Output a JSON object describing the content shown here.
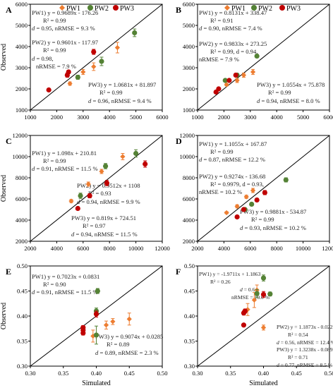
{
  "legend": {
    "items": [
      {
        "label": "PW1",
        "color": "#ED7D31",
        "marker": "diamond"
      },
      {
        "label": "PW2",
        "color": "#548235",
        "marker": "circle"
      },
      {
        "label": "PW3",
        "color": "#C00000",
        "marker": "circle"
      }
    ]
  },
  "chart_data": [
    {
      "panel": "A",
      "type": "scatter",
      "xlim": [
        1000,
        6000
      ],
      "ylim": [
        1000,
        6000
      ],
      "xticks": [
        "1000",
        "2000",
        "3000",
        "4000",
        "5000",
        "6000"
      ],
      "yticks": [
        "1000",
        "2000",
        "3000",
        "4000",
        "5000",
        "6000"
      ],
      "xlabel": "",
      "ylabel": "Observed",
      "series": [
        {
          "name": "PW1",
          "points": [
            [
              2500,
              2250
            ],
            [
              3000,
              2800
            ],
            [
              3400,
              3050
            ],
            [
              4300,
              3950
            ]
          ],
          "err": [
            80,
            120,
            180,
            250
          ]
        },
        {
          "name": "PW2",
          "points": [
            [
              2800,
              2550
            ],
            [
              3700,
              3300
            ],
            [
              4950,
              4650
            ]
          ],
          "err": [
            100,
            200,
            180
          ]
        },
        {
          "name": "PW3",
          "points": [
            [
              1700,
              1950
            ],
            [
              2400,
              2650
            ],
            [
              2450,
              2800
            ],
            [
              3400,
              3750
            ]
          ],
          "err": [
            60,
            100,
            80,
            120
          ]
        }
      ],
      "annotations": [
        "PW1) y = 0.9689x - 176.26",
        "R² = 0.99",
        "d = 0.95, nRMSE = 9.3 %",
        "PW2) y = 0.9601x - 117.97",
        "R² = 0.99",
        "d = 0.98,",
        "nRMSE = 7.9 %",
        "PW3) y = 1.0681x + 81.897",
        "R² = 0.99",
        "d = 0.96, nRMSE = 9.4 %"
      ]
    },
    {
      "panel": "B",
      "type": "scatter",
      "xlim": [
        1000,
        6000
      ],
      "ylim": [
        1000,
        6000
      ],
      "xticks": [
        "1000",
        "2000",
        "3000",
        "4000",
        "5000",
        "6000"
      ],
      "yticks": [
        "1000",
        "2000",
        "3000",
        "4000",
        "5000",
        "6000"
      ],
      "xlabel": "",
      "ylabel": "",
      "series": [
        {
          "name": "PW1",
          "points": [
            [
              2100,
              2200
            ],
            [
              2500,
              2400
            ],
            [
              2750,
              2650
            ],
            [
              3100,
              2800
            ]
          ],
          "err": [
            60,
            100,
            100,
            120
          ]
        },
        {
          "name": "PW2",
          "points": [
            [
              2050,
              2400
            ],
            [
              2500,
              2650
            ],
            [
              3250,
              3550
            ]
          ],
          "err": [
            60,
            80,
            80
          ]
        },
        {
          "name": "PW3",
          "points": [
            [
              1700,
              1850
            ],
            [
              1800,
              2000
            ],
            [
              2200,
              2400
            ],
            [
              2450,
              2650
            ]
          ],
          "err": [
            50,
            60,
            60,
            80
          ]
        }
      ],
      "annotations": [
        "PW1) y = 0.8131x + 338.47",
        "R² = 0.91",
        "d = 0.90, nRMSE = 7.4 %",
        "PW2) y = 0.9833x + 273.25",
        "R² = 0.99, d = 0.94,",
        "nRMSE = 7.9 %",
        "PW3) y = 1.0554x + 75.878",
        "R² = 0.99",
        "d = 0.94, nRMSE = 8.0 %"
      ]
    },
    {
      "panel": "C",
      "type": "scatter",
      "xlim": [
        2000,
        12000
      ],
      "ylim": [
        2000,
        12000
      ],
      "xticks": [
        "2000",
        "4000",
        "6000",
        "8000",
        "10000",
        "12000"
      ],
      "yticks": [
        "2000",
        "4000",
        "6000",
        "8000",
        "10000",
        "12000"
      ],
      "xlabel": "",
      "ylabel": "Observed",
      "series": [
        {
          "name": "PW1",
          "points": [
            [
              5100,
              5800
            ],
            [
              6400,
              7400
            ],
            [
              7400,
              8600
            ],
            [
              9000,
              10000
            ]
          ],
          "err": [
            150,
            200,
            200,
            300
          ]
        },
        {
          "name": "PW2",
          "points": [
            [
              5800,
              6300
            ],
            [
              7700,
              9100
            ],
            [
              10000,
              10300
            ]
          ],
          "err": [
            250,
            250,
            350
          ]
        },
        {
          "name": "PW3",
          "points": [
            [
              5600,
              5100
            ],
            [
              6500,
              6300
            ],
            [
              7800,
              7500
            ],
            [
              10700,
              9300
            ]
          ],
          "err": [
            150,
            200,
            250,
            300
          ]
        }
      ],
      "annotations": [
        "PW1) y = 1.098x + 210.81",
        "R² = 0.99",
        "d = 0.91, nRMSE = 11.5 %",
        "PW2) y = 0.9512x + 1108",
        "R² = 0.93",
        "d = 0.94, nRMSE = 9.9 %",
        "PW3) y = 0.819x + 724.51",
        "R² = 0.97",
        "d = 0.94, nRMSE = 11.5 %"
      ]
    },
    {
      "panel": "D",
      "type": "scatter",
      "xlim": [
        2000,
        12000
      ],
      "ylim": [
        2000,
        12000
      ],
      "xticks": [
        "2000",
        "4000",
        "6000",
        "8000",
        "10000",
        "12000"
      ],
      "yticks": [
        "2000",
        "4000",
        "6000",
        "8000",
        "10000",
        "12000"
      ],
      "xlabel": "",
      "ylabel": "",
      "series": [
        {
          "name": "PW1",
          "points": [
            [
              4200,
              4700
            ],
            [
              5000,
              5300
            ],
            [
              5700,
              6200
            ],
            [
              6200,
              6800
            ]
          ],
          "err": [
            100,
            150,
            150,
            200
          ]
        },
        {
          "name": "PW2",
          "points": [
            [
              5600,
              5000
            ],
            [
              6100,
              5500
            ],
            [
              8700,
              7800
            ]
          ],
          "err": [
            100,
            150,
            200
          ]
        },
        {
          "name": "PW3",
          "points": [
            [
              5000,
              4300
            ],
            [
              5500,
              5000
            ],
            [
              6500,
              5900
            ],
            [
              7100,
              6600
            ]
          ],
          "err": [
            100,
            100,
            150,
            200
          ]
        }
      ],
      "annotations": [
        "PW1) y = 1.1055x + 167.87",
        "R² = 0.99",
        "d = 0.87, nRMSE = 12.2 %",
        "PW2) y = 0.9274x - 136.68",
        "R² = 0.9979, d = 0.93,",
        "nRMSE = 10.2 %",
        "PW3) y = 0.9881x - 534.87",
        "R² = 0.99",
        "d = 0.93, nRMSE = 10.2 %"
      ]
    },
    {
      "panel": "E",
      "type": "scatter",
      "xlim": [
        0.3,
        0.5
      ],
      "ylim": [
        0.3,
        0.5
      ],
      "xticks": [
        "0.30",
        "0.35",
        "0.40",
        "0.45",
        "0.50"
      ],
      "yticks": [
        "0.30",
        "0.35",
        "0.40",
        "0.45",
        "0.50"
      ],
      "xlabel": "Simulated",
      "ylabel": "Observed",
      "series": [
        {
          "name": "PW1",
          "points": [
            [
              0.395,
              0.36
            ],
            [
              0.415,
              0.382
            ],
            [
              0.425,
              0.389
            ],
            [
              0.45,
              0.394
            ]
          ],
          "err": [
            0.012,
            0.008,
            0.006,
            0.012
          ]
        },
        {
          "name": "PW2",
          "points": [
            [
              0.4,
              0.362
            ],
            [
              0.4,
              0.41
            ],
            [
              0.402,
              0.45
            ]
          ],
          "err": [
            0.018,
            0.006,
            0.005
          ]
        },
        {
          "name": "PW3",
          "points": [
            [
              0.38,
              0.366
            ],
            [
              0.38,
              0.372
            ],
            [
              0.38,
              0.377
            ],
            [
              0.4,
              0.404
            ]
          ],
          "err": [
            0.004,
            0.004,
            0.004,
            0.006
          ]
        }
      ],
      "annotations": [
        "PW1) y = 0.7023x + 0.0831",
        "R² = 0.90",
        "d = 0.91, nRMSE = 11.5 %",
        "PW3) y = 0.9074x + 0.0285",
        "R² = 0.89",
        "d = 0.89, nRMSE = 2.3 %"
      ]
    },
    {
      "panel": "F",
      "type": "scatter",
      "xlim": [
        0.3,
        0.5
      ],
      "ylim": [
        0.3,
        0.5
      ],
      "xticks": [
        "0.30",
        "0.35",
        "0.40",
        "0.45",
        "0.50"
      ],
      "yticks": [
        "0.30",
        "0.35",
        "0.40",
        "0.45",
        "0.50"
      ],
      "xlabel": "Simulated",
      "ylabel": "",
      "series": [
        {
          "name": "PW1",
          "points": [
            [
              0.376,
              0.413
            ],
            [
              0.386,
              0.432
            ],
            [
              0.39,
              0.452
            ],
            [
              0.4,
              0.377
            ]
          ],
          "err": [
            0.012,
            0.015,
            0.01,
            0.005
          ]
        },
        {
          "name": "PW2",
          "points": [
            [
              0.39,
              0.445
            ],
            [
              0.4,
              0.476
            ],
            [
              0.41,
              0.444
            ]
          ],
          "err": [
            0.008,
            0.006,
            0.004
          ]
        },
        {
          "name": "PW3",
          "points": [
            [
              0.37,
              0.382
            ],
            [
              0.37,
              0.406
            ],
            [
              0.372,
              0.41
            ],
            [
              0.4,
              0.443
            ]
          ],
          "err": [
            0.003,
            0.004,
            0.004,
            0.006
          ]
        }
      ],
      "annotations": [
        "PW1) y = -1.9711x + 1.1863",
        "R² = 0.26",
        "d = 0.64,",
        "nRMSE = 10.0 %",
        "PW2) y = 1.1873x - 0.0221",
        "R² = 0.54",
        "d = 0.56, nRMSE = 12.4 %",
        "PW3) y = 1.3238x - 0.0896",
        "R² = 0.71",
        "d = 0.77, nRMSE = 8.5 %"
      ]
    }
  ]
}
